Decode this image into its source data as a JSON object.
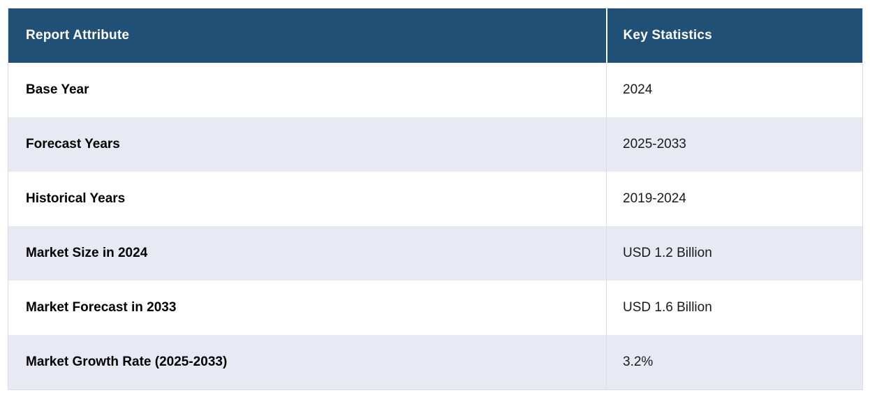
{
  "chart_data": {
    "type": "table",
    "columns": [
      "Report Attribute",
      "Key Statistics"
    ],
    "rows": [
      [
        "Base Year",
        "2024"
      ],
      [
        "Forecast Years",
        "2025-2033"
      ],
      [
        "Historical Years",
        "2019-2024"
      ],
      [
        "Market Size in 2024",
        "USD 1.2 Billion"
      ],
      [
        "Market Forecast in 2033",
        "USD 1.6 Billion"
      ],
      [
        "Market Growth Rate (2025-2033)",
        "3.2%"
      ]
    ]
  },
  "colors": {
    "header_bg": "#215077",
    "header_text": "#FFFFFF",
    "row_bg": "#FFFFFF",
    "row_alt_bg": "#E8EAF3",
    "border": "#D9DCE2",
    "attribute_text": "#000000",
    "value_text": "#1A1A1A"
  }
}
